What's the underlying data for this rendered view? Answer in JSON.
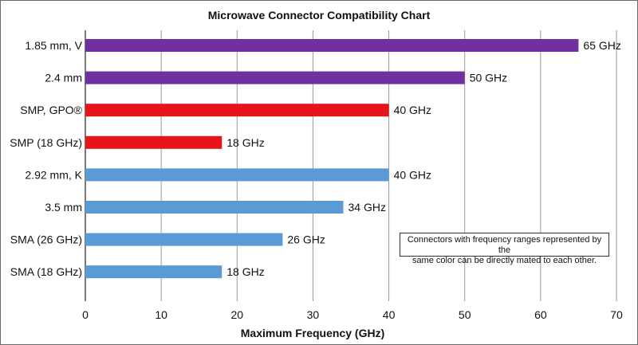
{
  "chart_data": {
    "type": "bar",
    "orientation": "horizontal",
    "title": "Microwave Connector Compatibility Chart",
    "xlabel": "Maximum Frequency (GHz)",
    "ylabel": "",
    "xlim": [
      0,
      70
    ],
    "x_ticks": [
      0,
      10,
      20,
      30,
      40,
      50,
      60,
      70
    ],
    "grid": "vertical",
    "categories": [
      "1.85 mm, V",
      "2.4 mm",
      "SMP, GPO®",
      "SMP (18 GHz)",
      "2.92 mm, K",
      "3.5 mm",
      "SMA (26 GHz)",
      "SMA (18 GHz)"
    ],
    "values": [
      65,
      50,
      40,
      18,
      40,
      34,
      26,
      18
    ],
    "value_labels": [
      "65 GHz",
      "50 GHz",
      "40 GHz",
      "18 GHz",
      "40 GHz",
      "34 GHz",
      "26 GHz",
      "18 GHz"
    ],
    "bar_colors": [
      "#7030a0",
      "#7030a0",
      "#e8141b",
      "#e8141b",
      "#5b9bd5",
      "#5b9bd5",
      "#5b9bd5",
      "#5b9bd5"
    ],
    "annotation": {
      "line1": "Connectors with frequency ranges represented by the",
      "line2": "same color can be directly mated to each other."
    }
  }
}
